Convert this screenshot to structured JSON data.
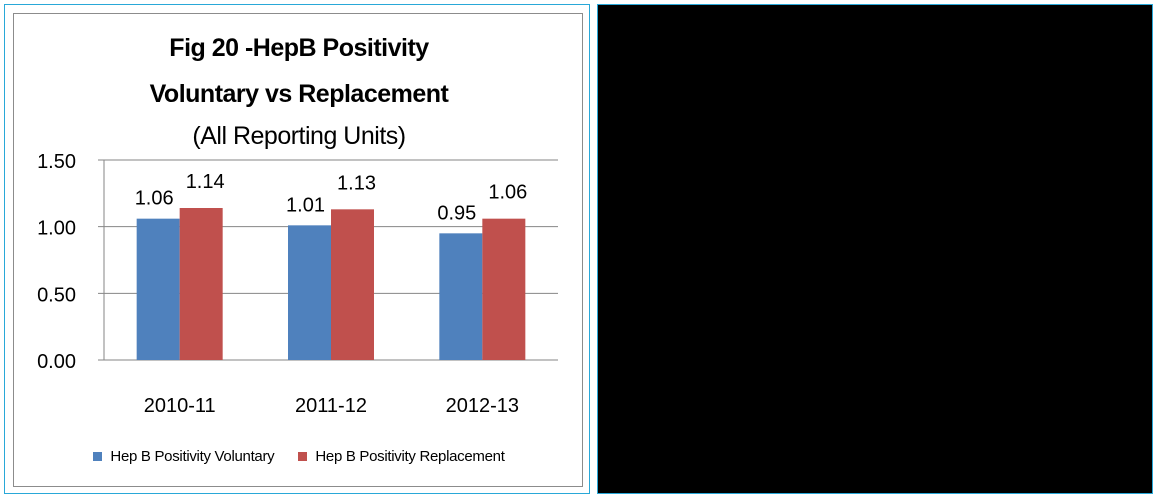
{
  "chart_data": {
    "type": "bar",
    "title": "Fig 20 -HepB Positivity",
    "title_line2": "Voluntary vs Replacement",
    "subtitle": "(All Reporting Units)",
    "categories": [
      "2010-11",
      "2011-12",
      "2012-13"
    ],
    "series": [
      {
        "name": "Hep B Positivity Voluntary",
        "values": [
          1.06,
          1.01,
          0.95
        ],
        "color": "#4f81bd"
      },
      {
        "name": "Hep B Positivity Replacement",
        "values": [
          1.14,
          1.13,
          1.06
        ],
        "color": "#c0504d"
      }
    ],
    "ylim": [
      0,
      1.5
    ],
    "yticks": [
      "0.00",
      "0.50",
      "1.00",
      "1.50"
    ],
    "grid": true,
    "legend_position": "bottom"
  }
}
